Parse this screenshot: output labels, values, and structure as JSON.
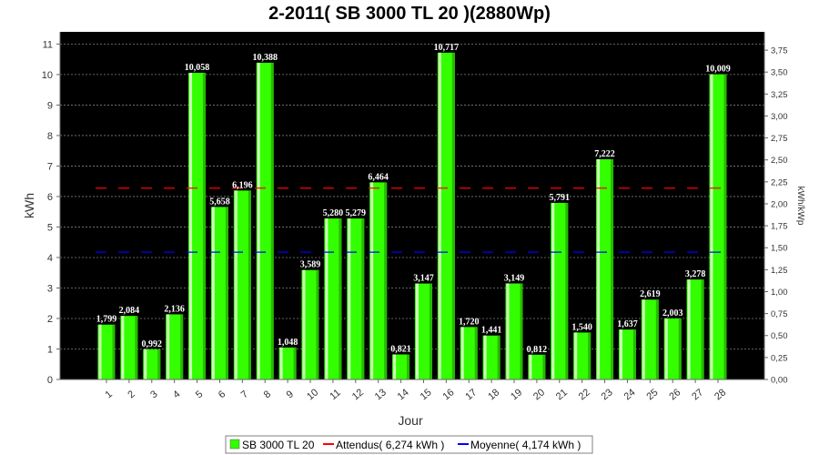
{
  "chart_data": {
    "type": "bar",
    "title": "2-2011( SB 3000 TL 20 )(2880Wp)",
    "xlabel": "Jour",
    "ylabel": "kWh",
    "ylabel_right": "kWh/kWp",
    "categories": [
      "1",
      "2",
      "3",
      "4",
      "5",
      "6",
      "7",
      "8",
      "9",
      "10",
      "11",
      "12",
      "13",
      "14",
      "15",
      "16",
      "17",
      "18",
      "19",
      "20",
      "21",
      "22",
      "23",
      "24",
      "25",
      "26",
      "27",
      "28"
    ],
    "series": [
      {
        "name": "SB 3000 TL 20",
        "values": [
          1.799,
          2.084,
          0.992,
          2.136,
          10.058,
          5.658,
          6.196,
          10.388,
          1.048,
          3.589,
          5.28,
          5.279,
          6.464,
          0.821,
          3.147,
          10.717,
          1.72,
          1.441,
          3.149,
          0.812,
          5.791,
          1.54,
          7.222,
          1.637,
          2.619,
          2.003,
          3.278,
          10.009
        ],
        "color": "#33ff00"
      }
    ],
    "value_labels": [
      "1,799",
      "2,084",
      "0,992",
      "2,136",
      "10,058",
      "5,658",
      "6,196",
      "10,388",
      "1,048",
      "3,589",
      "5,280",
      "5,279",
      "6,464",
      "0,821",
      "3,147",
      "10,717",
      "1,720",
      "1,441",
      "3,149",
      "0,812",
      "5,791",
      "1,540",
      "7,222",
      "1,637",
      "2,619",
      "2,003",
      "3,278",
      "10,009"
    ],
    "ylim": [
      0,
      11.4
    ],
    "yticks": [
      "0",
      "1",
      "2",
      "3",
      "4",
      "5",
      "6",
      "7",
      "8",
      "9",
      "10",
      "11"
    ],
    "ylim_right": [
      0,
      3.958
    ],
    "yticks_right": [
      "0,00",
      "0,25",
      "0,50",
      "0,75",
      "1,00",
      "1,25",
      "1,50",
      "1,75",
      "2,00",
      "2,25",
      "2,50",
      "2,75",
      "3,00",
      "3,25",
      "3,50",
      "3,75"
    ],
    "reference_lines": [
      {
        "name": "Attendus( 6,274 kWh )",
        "value": 6.274,
        "color": "#ff0000",
        "style": "dashed"
      },
      {
        "name": "Moyenne( 4,174 kWh )",
        "value": 4.174,
        "color": "#0000ff",
        "style": "dashed"
      }
    ],
    "legend": {
      "placement": "bottom",
      "items": [
        "SB 3000 TL 20",
        "Attendus( 6,274 kWh )",
        "Moyenne( 4,174 kWh )"
      ]
    },
    "grid": true,
    "plot_background": "#000000",
    "grid_color": "#808080"
  }
}
